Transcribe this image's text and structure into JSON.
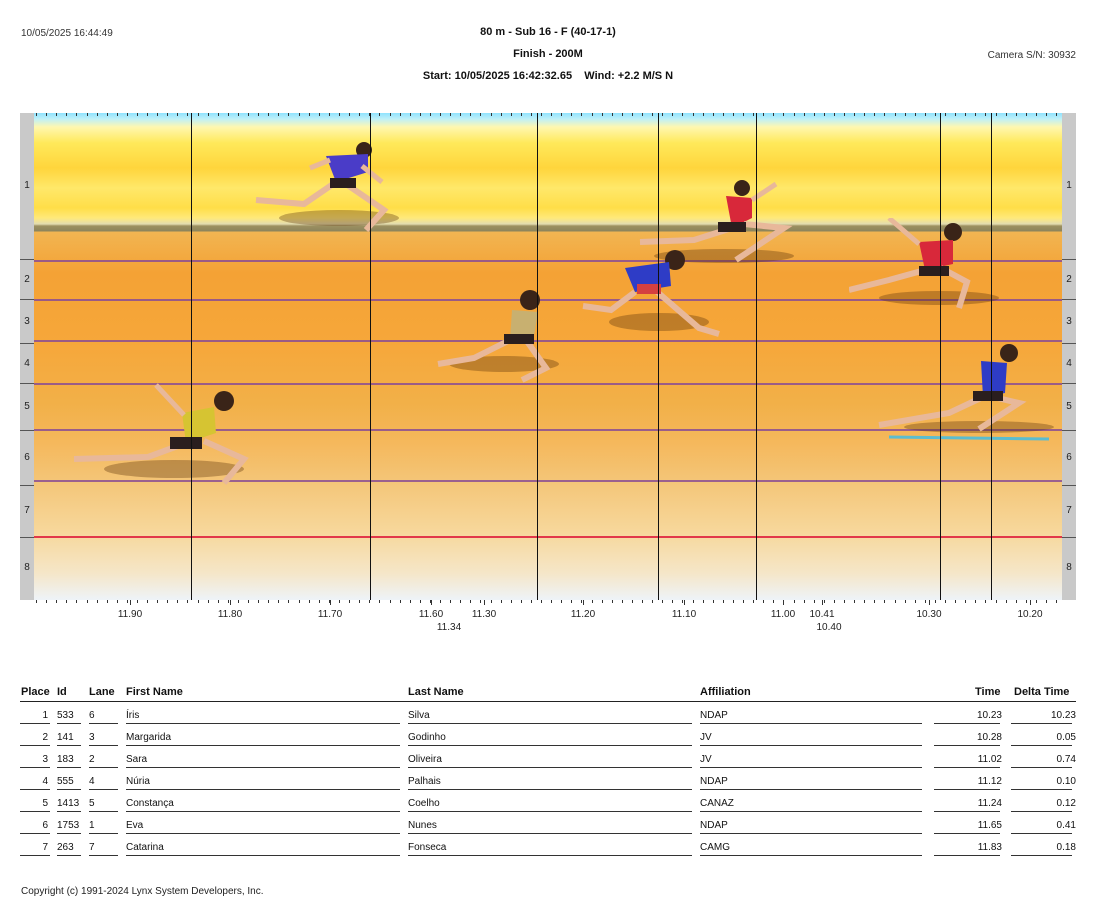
{
  "header": {
    "datetime": "10/05/2025 16:44:49",
    "event": "80 m - Sub 16 - F (40-17-1)",
    "finish": "Finish - 200M",
    "start": "Start: 10/05/2025 16:42:32.65    Wind: +2.2 M/S N",
    "camera": "Camera S/N: 30932"
  },
  "lanes": [
    "1",
    "2",
    "3",
    "4",
    "5",
    "6",
    "7",
    "8"
  ],
  "ruler": {
    "labels": [
      "11.90",
      "11.80",
      "11.70",
      "11.60",
      "11.30",
      "11.20",
      "11.10",
      "11.00",
      "10.41",
      "10.30",
      "10.20"
    ],
    "sub_labels": [
      "11.34",
      "10.40"
    ]
  },
  "table": {
    "columns": [
      "Place",
      "Id",
      "Lane",
      "First Name",
      "Last Name",
      "Affiliation",
      "Time",
      "Delta Time"
    ],
    "rows": [
      {
        "place": "1",
        "id": "533",
        "lane": "6",
        "first": "Íris",
        "last": "Silva",
        "aff": "NDAP",
        "time": "10.23",
        "delta": "10.23"
      },
      {
        "place": "2",
        "id": "141",
        "lane": "3",
        "first": "Margarida",
        "last": "Godinho",
        "aff": "JV",
        "time": "10.28",
        "delta": "0.05"
      },
      {
        "place": "3",
        "id": "183",
        "lane": "2",
        "first": "Sara",
        "last": "Oliveira",
        "aff": "JV",
        "time": "11.02",
        "delta": "0.74"
      },
      {
        "place": "4",
        "id": "555",
        "lane": "4",
        "first": "Núria",
        "last": "Palhais",
        "aff": "NDAP",
        "time": "11.12",
        "delta": "0.10"
      },
      {
        "place": "5",
        "id": "1413",
        "lane": "5",
        "first": "Constança",
        "last": "Coelho",
        "aff": "CANAZ",
        "time": "11.24",
        "delta": "0.12"
      },
      {
        "place": "6",
        "id": "1753",
        "lane": "1",
        "first": "Eva",
        "last": "Nunes",
        "aff": "NDAP",
        "time": "11.65",
        "delta": "0.41"
      },
      {
        "place": "7",
        "id": "263",
        "lane": "7",
        "first": "Catarina",
        "last": "Fonseca",
        "aff": "CAMG",
        "time": "11.83",
        "delta": "0.18"
      }
    ]
  },
  "footer": {
    "copyright": "Copyright (c) 1991-2024 Lynx System Developers, Inc."
  },
  "colors": {
    "lane_line": "#8a4e93",
    "finish_line": "#e2384a",
    "sky": "#8fe3ff",
    "track": "#f4a235"
  }
}
